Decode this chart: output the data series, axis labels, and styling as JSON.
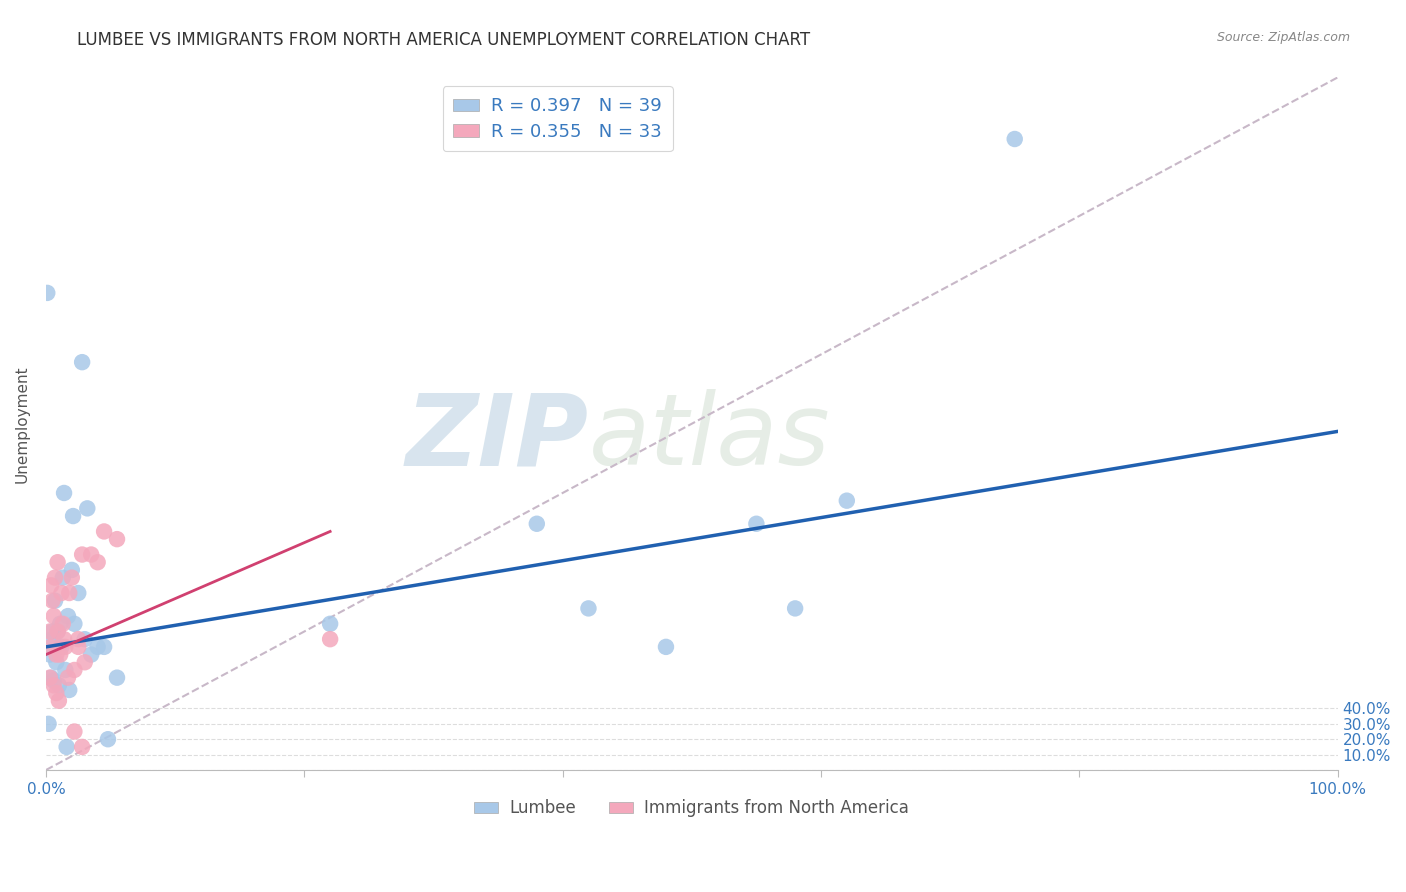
{
  "title": "LUMBEE VS IMMIGRANTS FROM NORTH AMERICA UNEMPLOYMENT CORRELATION CHART",
  "source": "Source: ZipAtlas.com",
  "ylabel": "Unemployment",
  "lumbee_R": 0.397,
  "lumbee_N": 39,
  "immigrant_R": 0.355,
  "immigrant_N": 33,
  "lumbee_color": "#a8c8e8",
  "immigrant_color": "#f4a8bc",
  "lumbee_line_color": "#2060b0",
  "immigrant_line_color": "#d04070",
  "diagonal_color": "#c8b8c8",
  "yticks": [
    0.0,
    0.1,
    0.2,
    0.3,
    0.4
  ],
  "ytick_labels": [
    "",
    "10.0%",
    "20.0%",
    "30.0%",
    "40.0%"
  ],
  "lumbee_scatter_x": [
    0.5,
    1.2,
    0.3,
    0.8,
    1.5,
    0.4,
    0.6,
    1.0,
    1.8,
    0.7,
    2.0,
    2.5,
    1.3,
    3.0,
    2.2,
    1.7,
    0.9,
    1.1,
    3.5,
    4.0,
    2.8,
    1.4,
    0.5,
    2.1,
    3.2,
    4.5,
    5.5,
    4.8,
    1.6,
    0.2,
    22.0,
    38.0,
    42.0,
    48.0,
    55.0,
    58.0,
    62.0,
    75.0,
    0.1
  ],
  "lumbee_scatter_y": [
    8.5,
    8.0,
    7.5,
    7.0,
    6.5,
    6.0,
    5.8,
    5.5,
    5.2,
    11.0,
    13.0,
    11.5,
    12.5,
    8.5,
    9.5,
    10.0,
    9.0,
    9.5,
    7.5,
    8.0,
    26.5,
    18.0,
    9.0,
    16.5,
    17.0,
    8.0,
    6.0,
    2.0,
    1.5,
    3.0,
    9.5,
    16.0,
    10.5,
    8.0,
    16.0,
    10.5,
    17.5,
    41.0,
    31.0
  ],
  "immigrant_scatter_x": [
    0.3,
    0.6,
    0.8,
    1.0,
    1.2,
    0.5,
    0.4,
    0.7,
    1.5,
    0.9,
    1.8,
    2.0,
    2.5,
    1.3,
    0.6,
    0.3,
    0.8,
    0.4,
    1.1,
    3.0,
    2.2,
    1.7,
    0.9,
    3.5,
    4.0,
    2.8,
    1.4,
    4.5,
    5.5,
    2.5,
    22.0,
    2.8,
    2.2
  ],
  "immigrant_scatter_y": [
    6.0,
    5.5,
    5.0,
    4.5,
    11.5,
    11.0,
    12.0,
    12.5,
    8.0,
    9.0,
    11.5,
    12.5,
    8.5,
    9.5,
    10.0,
    9.0,
    7.5,
    8.0,
    7.5,
    7.0,
    6.5,
    6.0,
    13.5,
    14.0,
    13.5,
    14.0,
    8.5,
    15.5,
    15.0,
    8.0,
    8.5,
    1.5,
    2.5
  ],
  "xlim": [
    0.0,
    100.0
  ],
  "ylim": [
    0.0,
    45.0
  ],
  "lumbee_line_x": [
    0.0,
    100.0
  ],
  "lumbee_line_y": [
    8.0,
    22.0
  ],
  "immigrant_line_x": [
    0.0,
    22.0
  ],
  "immigrant_line_y": [
    7.5,
    15.5
  ],
  "diagonal_line_x": [
    0.0,
    100.0
  ],
  "diagonal_line_y": [
    0.0,
    45.0
  ],
  "watermark_zip": "ZIP",
  "watermark_atlas": "atlas",
  "title_fontsize": 12,
  "axis_label_fontsize": 11,
  "tick_fontsize": 11
}
